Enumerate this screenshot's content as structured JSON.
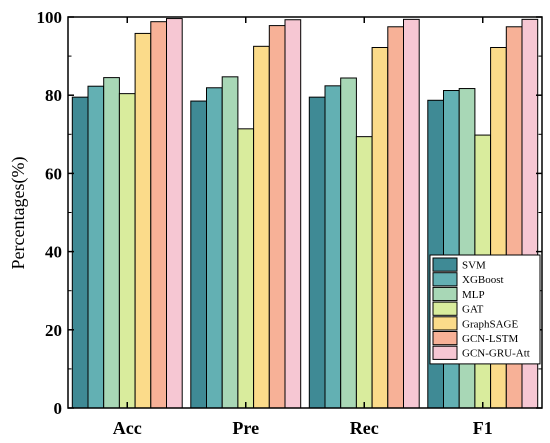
{
  "chart_data": {
    "type": "bar",
    "categories": [
      "Acc",
      "Pre",
      "Rec",
      "F1"
    ],
    "ylabel": "Percentages(%)",
    "xlabel": "",
    "ylim": [
      0,
      100
    ],
    "yticks": [
      0,
      20,
      40,
      60,
      80,
      100
    ],
    "grid": false,
    "legend_position": "bottom-right",
    "series": [
      {
        "name": "SVM",
        "color": "#3f8a95",
        "values": [
          79.5,
          78.5,
          79.5,
          78.7
        ]
      },
      {
        "name": "XGBoost",
        "color": "#63b0b3",
        "values": [
          82.3,
          81.9,
          82.4,
          81.2
        ]
      },
      {
        "name": "MLP",
        "color": "#a8d7b6",
        "values": [
          84.5,
          84.7,
          84.4,
          81.7
        ]
      },
      {
        "name": "GAT",
        "color": "#d9ec9d",
        "values": [
          80.4,
          71.4,
          69.4,
          69.8
        ]
      },
      {
        "name": "GraphSAGE",
        "color": "#fbdb8a",
        "values": [
          95.8,
          92.5,
          92.2,
          92.2
        ]
      },
      {
        "name": "GCN-LSTM",
        "color": "#f7b197",
        "values": [
          98.8,
          97.8,
          97.5,
          97.5
        ]
      },
      {
        "name": "GCN-GRU-Att",
        "color": "#f6c7d3",
        "values": [
          99.6,
          99.3,
          99.4,
          99.4
        ]
      }
    ]
  }
}
